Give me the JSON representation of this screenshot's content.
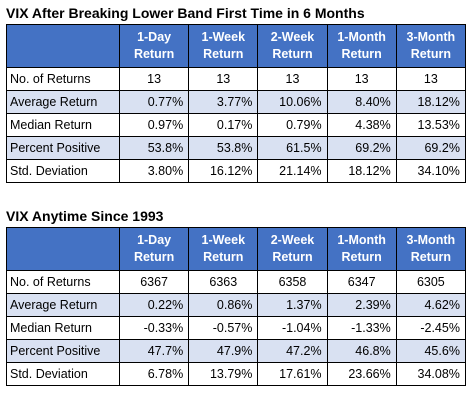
{
  "colors": {
    "header_bg": "#4472c4",
    "header_text": "#ffffff",
    "band_row_bg": "#d9e1f2",
    "border": "#000000"
  },
  "header_columns": [
    {
      "line1": "1-Day",
      "line2": "Return"
    },
    {
      "line1": "1-Week",
      "line2": "Return"
    },
    {
      "line1": "2-Week",
      "line2": "Return"
    },
    {
      "line1": "1-Month",
      "line2": "Return"
    },
    {
      "line1": "3-Month",
      "line2": "Return"
    }
  ],
  "tables": [
    {
      "title": "VIX After Breaking Lower Band First Time in 6 Months",
      "rows": [
        {
          "label": "No. of Returns",
          "values": [
            "13",
            "13",
            "13",
            "13",
            "13"
          ]
        },
        {
          "label": "Average Return",
          "values": [
            "0.77%",
            "3.77%",
            "10.06%",
            "8.40%",
            "18.12%"
          ]
        },
        {
          "label": "Median Return",
          "values": [
            "0.97%",
            "0.17%",
            "0.79%",
            "4.38%",
            "13.53%"
          ]
        },
        {
          "label": "Percent Positive",
          "values": [
            "53.8%",
            "53.8%",
            "61.5%",
            "69.2%",
            "69.2%"
          ]
        },
        {
          "label": "Std. Deviation",
          "values": [
            "3.80%",
            "16.12%",
            "21.14%",
            "18.12%",
            "34.10%"
          ]
        }
      ]
    },
    {
      "title": "VIX Anytime Since 1993",
      "rows": [
        {
          "label": "No. of Returns",
          "values": [
            "6367",
            "6363",
            "6358",
            "6347",
            "6305"
          ]
        },
        {
          "label": "Average Return",
          "values": [
            "0.22%",
            "0.86%",
            "1.37%",
            "2.39%",
            "4.62%"
          ]
        },
        {
          "label": "Median Return",
          "values": [
            "-0.33%",
            "-0.57%",
            "-1.04%",
            "-1.33%",
            "-2.45%"
          ]
        },
        {
          "label": "Percent Positive",
          "values": [
            "47.7%",
            "47.9%",
            "47.2%",
            "46.8%",
            "45.6%"
          ]
        },
        {
          "label": "Std. Deviation",
          "values": [
            "6.78%",
            "13.79%",
            "17.61%",
            "23.66%",
            "34.08%"
          ]
        }
      ]
    }
  ]
}
